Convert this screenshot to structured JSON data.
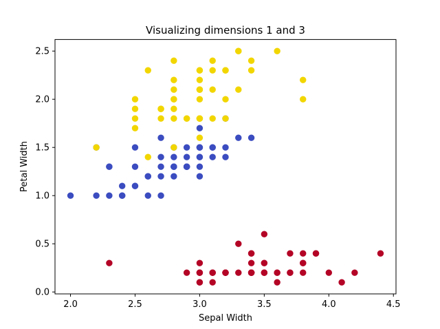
{
  "chart_data": {
    "type": "scatter",
    "title": "Visualizing dimensions 1 and 3",
    "xlabel": "Sepal Width",
    "ylabel": "Petal Width",
    "xlim": [
      1.88,
      4.52
    ],
    "ylim": [
      -0.02,
      2.62
    ],
    "xticks": [
      "2.0",
      "2.5",
      "3.0",
      "3.5",
      "4.0",
      "4.5"
    ],
    "yticks": [
      "0.0",
      "0.5",
      "1.0",
      "1.5",
      "2.0",
      "2.5"
    ],
    "grid": false,
    "legend": "none",
    "series": [
      {
        "color": "#b40426",
        "points": [
          [
            3.5,
            0.2
          ],
          [
            3.0,
            0.2
          ],
          [
            3.2,
            0.2
          ],
          [
            3.1,
            0.2
          ],
          [
            3.6,
            0.2
          ],
          [
            3.9,
            0.4
          ],
          [
            3.4,
            0.3
          ],
          [
            3.4,
            0.2
          ],
          [
            2.9,
            0.2
          ],
          [
            3.1,
            0.1
          ],
          [
            3.7,
            0.2
          ],
          [
            3.4,
            0.2
          ],
          [
            3.0,
            0.1
          ],
          [
            3.0,
            0.1
          ],
          [
            4.0,
            0.2
          ],
          [
            4.4,
            0.4
          ],
          [
            3.9,
            0.4
          ],
          [
            3.5,
            0.3
          ],
          [
            3.8,
            0.3
          ],
          [
            3.8,
            0.3
          ],
          [
            3.4,
            0.2
          ],
          [
            3.7,
            0.4
          ],
          [
            3.6,
            0.2
          ],
          [
            3.3,
            0.5
          ],
          [
            3.4,
            0.2
          ],
          [
            3.0,
            0.2
          ],
          [
            3.4,
            0.4
          ],
          [
            3.5,
            0.2
          ],
          [
            3.4,
            0.2
          ],
          [
            3.2,
            0.2
          ],
          [
            3.1,
            0.2
          ],
          [
            3.4,
            0.4
          ],
          [
            4.1,
            0.1
          ],
          [
            4.2,
            0.2
          ],
          [
            3.1,
            0.2
          ],
          [
            3.2,
            0.2
          ],
          [
            3.5,
            0.2
          ],
          [
            3.6,
            0.1
          ],
          [
            3.0,
            0.2
          ],
          [
            3.4,
            0.2
          ],
          [
            3.5,
            0.3
          ],
          [
            2.3,
            0.3
          ],
          [
            3.2,
            0.2
          ],
          [
            3.5,
            0.6
          ],
          [
            3.8,
            0.4
          ],
          [
            3.0,
            0.3
          ],
          [
            3.8,
            0.2
          ],
          [
            3.2,
            0.2
          ],
          [
            3.7,
            0.2
          ],
          [
            3.3,
            0.2
          ]
        ]
      },
      {
        "color": "#3b4cc0",
        "points": [
          [
            3.2,
            1.4
          ],
          [
            3.2,
            1.5
          ],
          [
            3.1,
            1.5
          ],
          [
            2.3,
            1.3
          ],
          [
            2.8,
            1.5
          ],
          [
            2.8,
            1.3
          ],
          [
            3.3,
            1.6
          ],
          [
            2.4,
            1.0
          ],
          [
            2.9,
            1.3
          ],
          [
            2.7,
            1.4
          ],
          [
            2.0,
            1.0
          ],
          [
            3.0,
            1.5
          ],
          [
            2.2,
            1.0
          ],
          [
            2.9,
            1.4
          ],
          [
            2.9,
            1.3
          ],
          [
            3.1,
            1.4
          ],
          [
            3.0,
            1.5
          ],
          [
            2.7,
            1.0
          ],
          [
            2.2,
            1.5
          ],
          [
            2.5,
            1.1
          ],
          [
            3.2,
            1.8
          ],
          [
            2.8,
            1.3
          ],
          [
            2.5,
            1.5
          ],
          [
            2.8,
            1.2
          ],
          [
            2.9,
            1.3
          ],
          [
            3.0,
            1.4
          ],
          [
            2.8,
            1.4
          ],
          [
            3.0,
            1.7
          ],
          [
            2.9,
            1.5
          ],
          [
            2.6,
            1.0
          ],
          [
            2.4,
            1.1
          ],
          [
            2.4,
            1.0
          ],
          [
            2.7,
            1.2
          ],
          [
            2.7,
            1.6
          ],
          [
            3.0,
            1.5
          ],
          [
            3.4,
            1.6
          ],
          [
            3.1,
            1.5
          ],
          [
            2.3,
            1.3
          ],
          [
            3.0,
            1.3
          ],
          [
            2.5,
            1.3
          ],
          [
            2.6,
            1.2
          ],
          [
            3.0,
            1.4
          ],
          [
            2.6,
            1.2
          ],
          [
            2.3,
            1.0
          ],
          [
            2.7,
            1.3
          ],
          [
            3.0,
            1.2
          ],
          [
            2.9,
            1.3
          ],
          [
            2.9,
            1.3
          ],
          [
            2.5,
            1.1
          ],
          [
            2.8,
            1.3
          ]
        ]
      },
      {
        "color": "#f2d600",
        "points": [
          [
            3.3,
            2.5
          ],
          [
            2.7,
            1.9
          ],
          [
            3.0,
            2.1
          ],
          [
            2.9,
            1.8
          ],
          [
            3.0,
            2.2
          ],
          [
            3.0,
            2.1
          ],
          [
            2.5,
            1.7
          ],
          [
            2.9,
            1.8
          ],
          [
            2.5,
            1.8
          ],
          [
            3.6,
            2.5
          ],
          [
            3.2,
            2.0
          ],
          [
            2.7,
            1.9
          ],
          [
            3.0,
            2.1
          ],
          [
            2.5,
            2.0
          ],
          [
            2.8,
            2.4
          ],
          [
            3.2,
            2.3
          ],
          [
            3.0,
            1.8
          ],
          [
            3.8,
            2.2
          ],
          [
            2.6,
            2.3
          ],
          [
            2.2,
            1.5
          ],
          [
            3.2,
            2.3
          ],
          [
            2.8,
            2.0
          ],
          [
            2.8,
            2.0
          ],
          [
            2.7,
            1.8
          ],
          [
            3.3,
            2.1
          ],
          [
            3.2,
            1.8
          ],
          [
            2.8,
            1.8
          ],
          [
            3.0,
            1.8
          ],
          [
            2.8,
            2.1
          ],
          [
            3.0,
            1.6
          ],
          [
            2.8,
            1.9
          ],
          [
            3.8,
            2.0
          ],
          [
            2.8,
            2.2
          ],
          [
            2.8,
            1.5
          ],
          [
            2.6,
            1.4
          ],
          [
            3.0,
            2.3
          ],
          [
            3.4,
            2.4
          ],
          [
            3.1,
            1.8
          ],
          [
            3.0,
            1.8
          ],
          [
            3.1,
            2.1
          ],
          [
            3.1,
            2.4
          ],
          [
            3.1,
            2.3
          ],
          [
            2.7,
            1.9
          ],
          [
            3.2,
            2.3
          ],
          [
            3.3,
            2.5
          ],
          [
            3.0,
            2.3
          ],
          [
            2.5,
            1.9
          ],
          [
            3.0,
            2.0
          ],
          [
            3.4,
            2.3
          ],
          [
            3.0,
            1.8
          ]
        ]
      }
    ]
  }
}
